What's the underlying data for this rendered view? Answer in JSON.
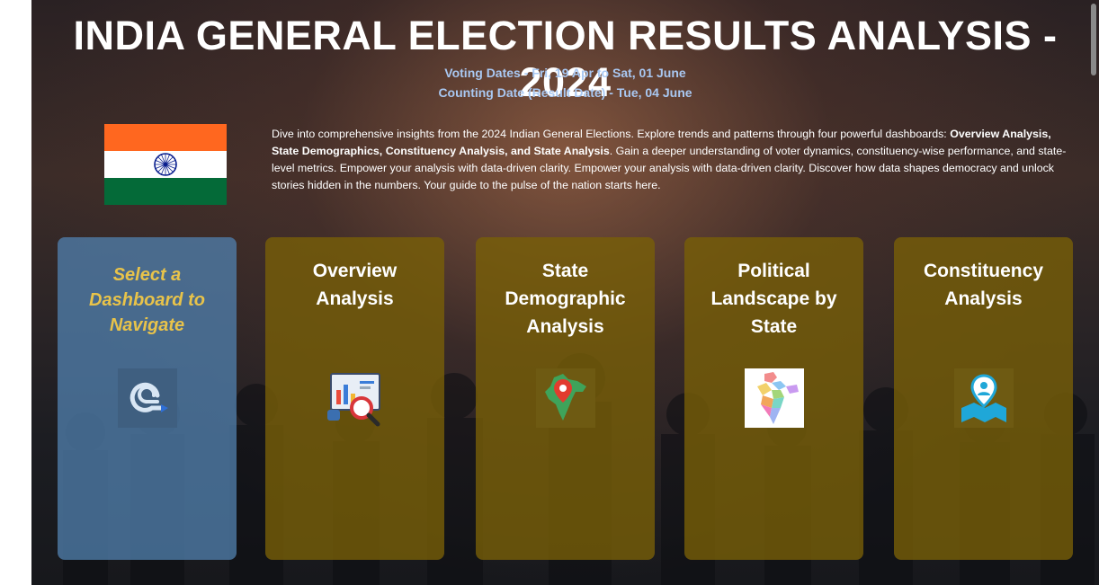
{
  "header": {
    "title": "INDIA GENERAL ELECTION RESULTS ANALYSIS - 2024",
    "voting_dates": "Voting Dates - Fri, 19 Apr to Sat, 01 June",
    "counting_date": "Counting Date (Result Date) - Tue, 04 June"
  },
  "intro": {
    "part1": "Dive into comprehensive insights from the 2024 Indian General Elections. Explore trends and patterns through four powerful dashboards: ",
    "bold": "Overview Analysis, State Demographics, Constituency Analysis, and State Analysis",
    "part2": ". Gain a deeper understanding of voter dynamics, constituency-wise performance, and state-level metrics. Empower your analysis with data-driven clarity. Empower your analysis with data-driven clarity. Discover how data shapes democracy and unlock stories hidden in the numbers. Your guide to the pulse of the nation starts here."
  },
  "colors": {
    "title": "#ffffff",
    "subtitle": "#a9c8f2",
    "nav_card": "#507daa",
    "dashboard_card": "#785f08",
    "nav_label": "#e8c34a"
  },
  "cards": [
    {
      "label": "Select a Dashboard to Navigate",
      "icon": "navigate-icon"
    },
    {
      "label": "Overview Analysis",
      "icon": "report-magnifier-icon"
    },
    {
      "label": "State Demographic Analysis",
      "icon": "india-map-pin-icon"
    },
    {
      "label": "Political Landscape by State",
      "icon": "india-states-map-icon"
    },
    {
      "label": "Constituency Analysis",
      "icon": "location-person-map-icon"
    }
  ]
}
